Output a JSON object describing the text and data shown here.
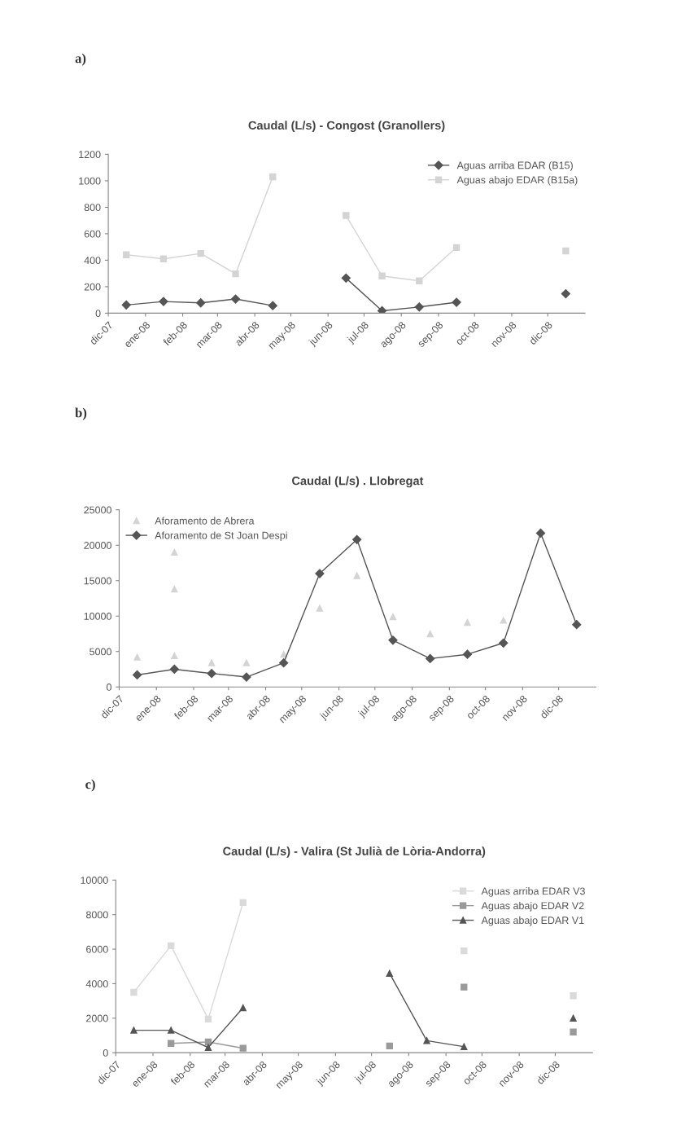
{
  "chart_data": [
    {
      "type": "line",
      "title": "Caudal (L/s) - Congost (Granollers)",
      "annotations": [
        "a)"
      ],
      "x": [
        "2007-12-16",
        "2008-01-16",
        "2008-02-16",
        "2008-03-16",
        "2008-04-16",
        "2008-05-16",
        "2008-06-16",
        "2008-07-16",
        "2008-08-16",
        "2008-09-16",
        "2008-10-16",
        "2008-11-16",
        "2008-12-16"
      ],
      "series": [
        {
          "name": "Aguas arriba EDAR (B15)",
          "color": "#555555",
          "marker": "diamond",
          "values": [
            62,
            88,
            78,
            107,
            57,
            null,
            265,
            18,
            47,
            82,
            null,
            null,
            147
          ]
        },
        {
          "name": "Aguas abajo EDAR (B15a)",
          "color": "#d4d4d4",
          "marker": "square",
          "values": [
            441,
            410,
            451,
            297,
            1030,
            null,
            738,
            281,
            244,
            496,
            null,
            null,
            470
          ]
        }
      ],
      "xlim": [
        "2007-12-01",
        "2009-01-01"
      ],
      "xticks": [
        {
          "value": "2007-12-01",
          "label": "dic-07"
        },
        {
          "value": "2008-01-01",
          "label": "ene-08"
        },
        {
          "value": "2008-02-01",
          "label": "feb-08"
        },
        {
          "value": "2008-03-01",
          "label": "mar-08"
        },
        {
          "value": "2008-04-01",
          "label": "abr-08"
        },
        {
          "value": "2008-05-01",
          "label": "may-08"
        },
        {
          "value": "2008-06-01",
          "label": "jun-08"
        },
        {
          "value": "2008-07-01",
          "label": "jul-08"
        },
        {
          "value": "2008-08-01",
          "label": "ago-08"
        },
        {
          "value": "2008-09-01",
          "label": "sep-08"
        },
        {
          "value": "2008-10-01",
          "label": "oct-08"
        },
        {
          "value": "2008-11-01",
          "label": "nov-08"
        },
        {
          "value": "2008-12-01",
          "label": "dic-08"
        }
      ],
      "ylim": [
        0,
        1200
      ],
      "yticks": [
        0,
        200,
        400,
        600,
        800,
        1000,
        1200
      ],
      "legend": "top right",
      "line_style": "solid"
    },
    {
      "type": "line",
      "title": "Caudal (L/s) . Llobregat",
      "annotations": [
        "b)"
      ],
      "series": [
        {
          "name": "Aforamento de Abrera",
          "type": "scatter",
          "color": "#d4d4d4",
          "marker": "triangle",
          "x": [
            "2007-12-16",
            "2008-01-16",
            "2008-01-16",
            "2008-01-16",
            "2008-02-16",
            "2008-03-16",
            "2008-04-16",
            "2008-05-16",
            "2008-06-16",
            "2008-07-16",
            "2008-08-16",
            "2008-09-16",
            "2008-10-16"
          ],
          "values": [
            4200,
            4400,
            19000,
            13800,
            3400,
            3400,
            4600,
            11100,
            15700,
            9900,
            7500,
            9100,
            9400
          ]
        },
        {
          "name": "Aforamento de St Joan Despi",
          "color": "#555555",
          "marker": "diamond",
          "x": [
            "2007-12-16",
            "2008-01-16",
            "2008-02-16",
            "2008-03-16",
            "2008-04-16",
            "2008-05-16",
            "2008-06-16",
            "2008-07-16",
            "2008-08-16",
            "2008-09-16",
            "2008-10-16",
            "2008-11-16",
            "2008-12-16"
          ],
          "values": [
            1700,
            2500,
            1900,
            1400,
            3400,
            16000,
            20800,
            6600,
            4000,
            4600,
            6200,
            21700,
            8800
          ]
        }
      ],
      "xlim": [
        "2007-12-01",
        "2009-01-01"
      ],
      "xticks": [
        {
          "value": "2007-12-01",
          "label": "dic-07"
        },
        {
          "value": "2008-01-01",
          "label": "ene-08"
        },
        {
          "value": "2008-02-01",
          "label": "feb-08"
        },
        {
          "value": "2008-03-01",
          "label": "mar-08"
        },
        {
          "value": "2008-04-01",
          "label": "abr-08"
        },
        {
          "value": "2008-05-01",
          "label": "may-08"
        },
        {
          "value": "2008-06-01",
          "label": "jun-08"
        },
        {
          "value": "2008-07-01",
          "label": "jul-08"
        },
        {
          "value": "2008-08-01",
          "label": "ago-08"
        },
        {
          "value": "2008-09-01",
          "label": "sep-08"
        },
        {
          "value": "2008-10-01",
          "label": "oct-08"
        },
        {
          "value": "2008-11-01",
          "label": "nov-08"
        },
        {
          "value": "2008-12-01",
          "label": "dic-08"
        }
      ],
      "ylim": [
        0,
        25000
      ],
      "yticks": [
        0,
        5000,
        10000,
        15000,
        20000,
        25000
      ],
      "legend": "top left",
      "line_style": "solid"
    },
    {
      "type": "line",
      "title": "Caudal (L/s) - Valira (St Julià de Lòria-Andorra)",
      "annotations": [
        "c)"
      ],
      "x": [
        "2007-12-16",
        "2008-01-16",
        "2008-02-16",
        "2008-03-16",
        "2008-04-16",
        "2008-05-16",
        "2008-06-16",
        "2008-07-16",
        "2008-08-16",
        "2008-09-16",
        "2008-10-16",
        "2008-11-16",
        "2008-12-16"
      ],
      "series": [
        {
          "name": "Aguas arriba EDAR V3",
          "color": "#dadada",
          "marker": "square",
          "values": [
            3500,
            6200,
            1950,
            8700,
            null,
            null,
            null,
            null,
            null,
            5900,
            null,
            null,
            3300
          ]
        },
        {
          "name": "Aguas abajo EDAR V2",
          "color": "#9a9a9a",
          "marker": "square",
          "values": [
            null,
            540,
            620,
            260,
            null,
            null,
            null,
            390,
            null,
            3800,
            null,
            null,
            1200
          ]
        },
        {
          "name": "Aguas abajo EDAR V1",
          "color": "#555555",
          "marker": "triangle",
          "values": [
            1300,
            1300,
            300,
            2600,
            null,
            null,
            null,
            4600,
            700,
            350,
            null,
            null,
            2000
          ]
        }
      ],
      "xlim": [
        "2007-12-01",
        "2009-01-01"
      ],
      "xticks": [
        {
          "value": "2007-12-01",
          "label": "dic-07"
        },
        {
          "value": "2008-01-01",
          "label": "ene-08"
        },
        {
          "value": "2008-02-01",
          "label": "feb-08"
        },
        {
          "value": "2008-03-01",
          "label": "mar-08"
        },
        {
          "value": "2008-04-01",
          "label": "abr-08"
        },
        {
          "value": "2008-05-01",
          "label": "may-08"
        },
        {
          "value": "2008-06-01",
          "label": "jun-08"
        },
        {
          "value": "2008-07-01",
          "label": "jul-08"
        },
        {
          "value": "2008-08-01",
          "label": "ago-08"
        },
        {
          "value": "2008-09-01",
          "label": "sep-08"
        },
        {
          "value": "2008-10-01",
          "label": "oct-08"
        },
        {
          "value": "2008-11-01",
          "label": "nov-08"
        },
        {
          "value": "2008-12-01",
          "label": "dic-08"
        }
      ],
      "ylim": [
        0,
        10000
      ],
      "yticks": [
        0,
        2000,
        4000,
        6000,
        8000,
        10000
      ],
      "legend": "top right",
      "line_style": "solid"
    }
  ]
}
